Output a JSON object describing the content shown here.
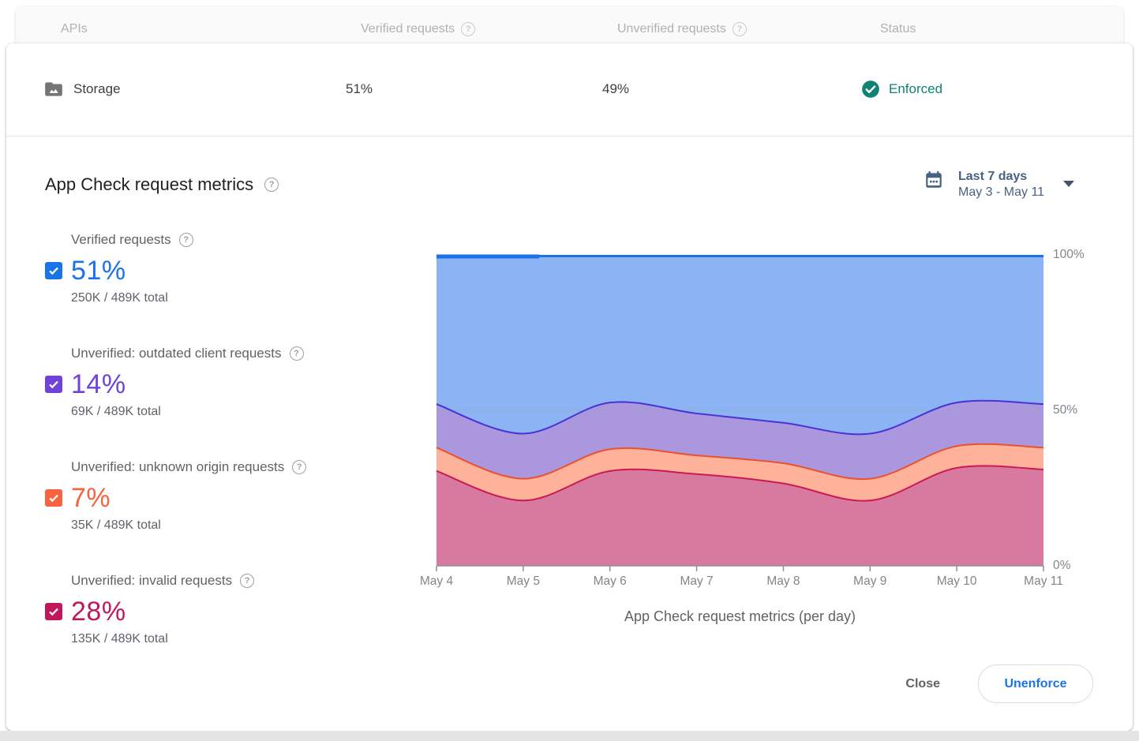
{
  "table": {
    "headers": {
      "apis": "APIs",
      "verified": "Verified requests",
      "unverified": "Unverified requests",
      "status": "Status"
    },
    "row": {
      "api_name": "Storage",
      "verified": "51%",
      "unverified": "49%",
      "status": "Enforced"
    }
  },
  "section": {
    "title": "App Check request metrics"
  },
  "date_selector": {
    "range_label": "Last 7 days",
    "range_dates": "May 3 - May 11"
  },
  "metrics": [
    {
      "label": "Verified requests",
      "value": "51%",
      "total": "250K / 489K total",
      "color": "#1a73e8"
    },
    {
      "label": "Unverified: outdated client requests",
      "value": "14%",
      "total": "69K / 489K total",
      "color": "#7142d8"
    },
    {
      "label": "Unverified: unknown origin requests",
      "value": "7%",
      "total": "35K / 489K total",
      "color": "#f9623e"
    },
    {
      "label": "Unverified: invalid requests",
      "value": "28%",
      "total": "135K / 489K total",
      "color": "#c2185b"
    }
  ],
  "chart_data": {
    "type": "area",
    "stacked": true,
    "normalized_percent": true,
    "title": "App Check request metrics",
    "caption": "App Check request metrics (per day)",
    "x": [
      "May 4",
      "May 5",
      "May 6",
      "May 7",
      "May 8",
      "May 9",
      "May 10",
      "May 11"
    ],
    "series": [
      {
        "name": "Unverified: invalid requests",
        "values": [
          30.5,
          21,
          30.5,
          29.5,
          26.5,
          21,
          31.5,
          31
        ],
        "fill": "#d8799f",
        "stroke": "#cc1952"
      },
      {
        "name": "Unverified: unknown origin requests",
        "values": [
          7.5,
          7,
          7,
          6,
          6.5,
          7,
          7,
          7
        ],
        "fill": "#ffb29a",
        "stroke": "#ea512e"
      },
      {
        "name": "Unverified: outdated client requests",
        "values": [
          14,
          14.5,
          15,
          13.5,
          13,
          14.5,
          14,
          14
        ],
        "fill": "#ab97de",
        "stroke": "#4733d6"
      },
      {
        "name": "Verified requests",
        "values": [
          48,
          57.5,
          47.5,
          51,
          54,
          57.5,
          47.5,
          48
        ],
        "fill": "#8cb4f5",
        "stroke": "#1a73e8"
      }
    ],
    "y_ticks": [
      100,
      50,
      0
    ],
    "y_tick_labels": [
      "100%",
      "50%",
      "0%"
    ],
    "ylim": [
      0,
      100
    ],
    "grid": "single line at 50%",
    "legend_position": "none (legend is the checkbox list at left)"
  },
  "footer": {
    "close_label": "Close",
    "unenforce_label": "Unenforce"
  },
  "colors": {
    "accent_blue": "#1a73e8",
    "enforced_green": "#0e8374",
    "axis_text": "#80868b",
    "muted_text": "#5f6368",
    "header_text": "#aeb1b5"
  }
}
